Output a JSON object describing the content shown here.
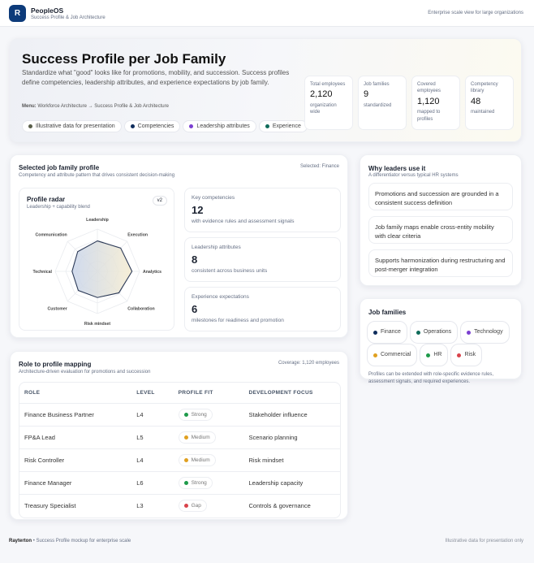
{
  "app": {
    "name": "PeopleOS",
    "subtitle": "Success Profile & Job Architecture",
    "logo_letter": "R",
    "tagline": "Enterprise scale view for large organizations"
  },
  "hero": {
    "title": "Success Profile per Job Family",
    "description": "Standardize what \"good\" looks like for promotions, mobility, and succession. Success profiles define competencies, leadership attributes, and experience expectations by job family.",
    "menu_label": "Menu:",
    "menu_path": "Workforce Architecture → Success Profile & Job Architecture",
    "pills": [
      {
        "label": "Illustrative data for presentation",
        "color": "#5a5f4a"
      },
      {
        "label": "Competencies",
        "color": "#0f2d5c"
      },
      {
        "label": "Leadership attributes",
        "color": "#7b3fd1"
      },
      {
        "label": "Experience",
        "color": "#0f6b5a"
      }
    ],
    "stats": [
      {
        "label": "Total employees",
        "value": "2,120",
        "note": "organization wide"
      },
      {
        "label": "Job families",
        "value": "9",
        "note": "standardized"
      },
      {
        "label": "Covered employees",
        "value": "1,120",
        "note": "mapped to profiles"
      },
      {
        "label": "Competency library",
        "value": "48",
        "note": "maintained"
      }
    ]
  },
  "profile": {
    "title": "Selected job family profile",
    "subtitle": "Competency and attribute pattern that drives consistent decision-making",
    "selected": "Selected: Finance",
    "radar": {
      "title": "Profile radar",
      "subtitle": "Leadership + capability blend",
      "badge": "v2"
    },
    "metrics": [
      {
        "label": "Key competencies",
        "value": "12",
        "note": "with evidence rules and assessment signals"
      },
      {
        "label": "Leadership attributes",
        "value": "8",
        "note": "consistent across business units"
      },
      {
        "label": "Experience expectations",
        "value": "6",
        "note": "milestones for readiness and promotion"
      }
    ]
  },
  "chart_data": {
    "type": "radar",
    "axes": [
      "Leadership",
      "Execution",
      "Analytics",
      "Collaboration",
      "Risk mindset",
      "Customer",
      "Technical",
      "Communication"
    ],
    "values": [
      72,
      78,
      82,
      72,
      62,
      64,
      60,
      66
    ],
    "max": 100,
    "rings": 4
  },
  "why": {
    "title": "Why leaders use it",
    "subtitle": "A differentiator versus typical HR systems",
    "items": [
      "Promotions and succession are grounded in a consistent success definition",
      "Job family maps enable cross-entity mobility with clear criteria",
      "Supports harmonization during restructuring and post-merger integration"
    ]
  },
  "families": {
    "title": "Job families",
    "items": [
      {
        "label": "Finance",
        "color": "#0f2d5c"
      },
      {
        "label": "Operations",
        "color": "#0f6b5a"
      },
      {
        "label": "Technology",
        "color": "#7b3fd1"
      },
      {
        "label": "Commercial",
        "color": "#e0a020"
      },
      {
        "label": "HR",
        "color": "#1e9a4a"
      },
      {
        "label": "Risk",
        "color": "#d9434b"
      }
    ],
    "note": "Profiles can be extended with role-specific evidence rules, assessment signals, and required experiences."
  },
  "mapping": {
    "title": "Role to profile mapping",
    "subtitle": "Architecture-driven evaluation for promotions and succession",
    "coverage": "Coverage: 1,120 employees",
    "columns": [
      "ROLE",
      "LEVEL",
      "PROFILE FIT",
      "DEVELOPMENT FOCUS"
    ],
    "rows": [
      {
        "role": "Finance Business Partner",
        "level": "L4",
        "fit": "Strong",
        "fit_color": "#1e9a4a",
        "focus": "Stakeholder influence"
      },
      {
        "role": "FP&A Lead",
        "level": "L5",
        "fit": "Medium",
        "fit_color": "#e0a020",
        "focus": "Scenario planning"
      },
      {
        "role": "Risk Controller",
        "level": "L4",
        "fit": "Medium",
        "fit_color": "#e0a020",
        "focus": "Risk mindset"
      },
      {
        "role": "Finance Manager",
        "level": "L6",
        "fit": "Strong",
        "fit_color": "#1e9a4a",
        "focus": "Leadership capacity"
      },
      {
        "role": "Treasury Specialist",
        "level": "L3",
        "fit": "Gap",
        "fit_color": "#d9434b",
        "focus": "Controls & governance"
      }
    ]
  },
  "footer": {
    "brand": "Rayterton",
    "text": "• Success Profile mockup for enterprise scale",
    "right": "Illustrative data for presentation only"
  }
}
